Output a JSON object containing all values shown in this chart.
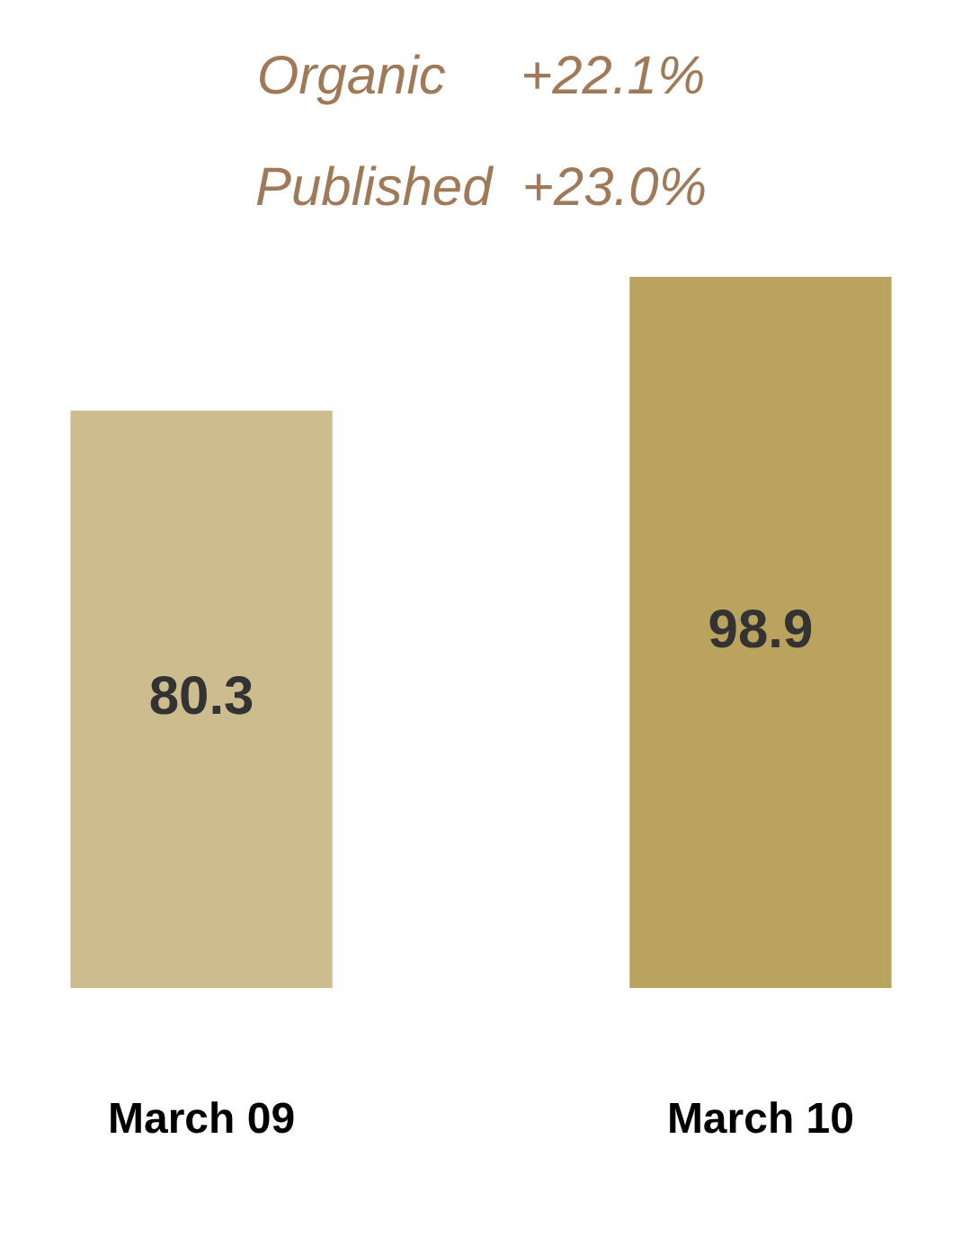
{
  "chart_data": {
    "type": "bar",
    "categories": [
      "March 09",
      "March 10"
    ],
    "values": [
      80.3,
      98.9
    ],
    "colors": [
      "#cdbd8e",
      "#b9a35f"
    ],
    "data_labels": true,
    "legend": false,
    "grid": false,
    "tick_labels": "x",
    "annotations": [
      "Organic     +22.1%",
      "Published  +23.0%"
    ]
  }
}
